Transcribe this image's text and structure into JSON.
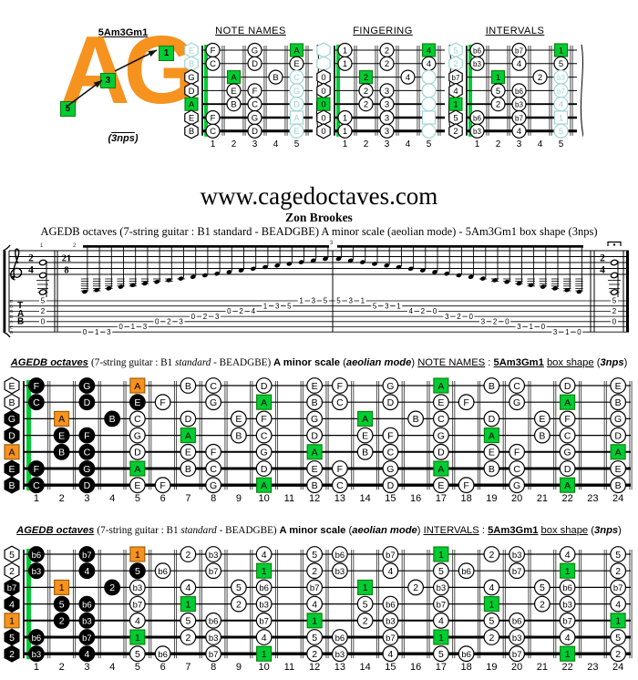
{
  "colors": {
    "orange": "#f6921e",
    "orange_dark": "#9a5a00",
    "green": "#00cc33",
    "green_dark": "#067d06",
    "teal": "#9dd4d4",
    "black": "#000000"
  },
  "logo": {
    "shape_label": "5Am3Gm1",
    "letters": "AG",
    "nps_label": "3nps",
    "box_labels": [
      "1",
      "3",
      "5"
    ]
  },
  "site": {
    "url": "www.cagedoctaves.com",
    "author": "Zon Brookes",
    "subtitle": "AGEDB octaves (7-string guitar : B1 standard - BEADGBE) A minor scale (aeolian mode) - 5Am3Gm1 box shape (3nps)"
  },
  "mini_fret_numbers": [
    "1",
    "2",
    "3",
    "4",
    "5"
  ],
  "minis": [
    {
      "title": "NOTE NAMES",
      "strings": [
        [
          [
            0,
            "E",
            "t"
          ],
          [
            1,
            "F",
            "w"
          ],
          [
            3,
            "G",
            "w"
          ],
          [
            5,
            "A",
            "g"
          ]
        ],
        [
          [
            0,
            "B",
            "t"
          ],
          [
            1,
            "C",
            "w"
          ],
          [
            3,
            "D",
            "w"
          ],
          [
            5,
            "E",
            "w"
          ]
        ],
        [
          [
            0,
            "G",
            "w"
          ],
          [
            2,
            "A",
            "g"
          ],
          [
            4,
            "B",
            "w"
          ],
          [
            5,
            "C",
            "t"
          ]
        ],
        [
          [
            0,
            "D",
            "w"
          ],
          [
            2,
            "E",
            "w"
          ],
          [
            3,
            "F",
            "w"
          ],
          [
            5,
            "G",
            "t"
          ]
        ],
        [
          [
            0,
            "A",
            "g"
          ],
          [
            2,
            "B",
            "w"
          ],
          [
            3,
            "C",
            "w"
          ],
          [
            5,
            "D",
            "t"
          ]
        ],
        [
          [
            0,
            "E",
            "w"
          ],
          [
            1,
            "F",
            "w"
          ],
          [
            3,
            "G",
            "w"
          ],
          [
            5,
            "A",
            "ts"
          ]
        ],
        [
          [
            0,
            "B",
            "w"
          ],
          [
            1,
            "C",
            "w"
          ],
          [
            3,
            "D",
            "w"
          ],
          [
            5,
            "E",
            "t"
          ]
        ]
      ]
    },
    {
      "title": "FINGERING",
      "strings": [
        [
          [
            0,
            "",
            "t"
          ],
          [
            1,
            "1",
            "w"
          ],
          [
            3,
            "2",
            "w"
          ],
          [
            5,
            "4",
            "g"
          ]
        ],
        [
          [
            0,
            "",
            "t"
          ],
          [
            1,
            "1",
            "w"
          ],
          [
            3,
            "2",
            "w"
          ],
          [
            5,
            "4",
            "w"
          ]
        ],
        [
          [
            0,
            "0",
            "w"
          ],
          [
            2,
            "2",
            "g"
          ],
          [
            4,
            "4",
            "w"
          ],
          [
            5,
            "",
            "t"
          ]
        ],
        [
          [
            0,
            "0",
            "w"
          ],
          [
            2,
            "2",
            "w"
          ],
          [
            3,
            "3",
            "w"
          ],
          [
            5,
            "",
            "t"
          ]
        ],
        [
          [
            0,
            "0",
            "g"
          ],
          [
            2,
            "2",
            "w"
          ],
          [
            3,
            "3",
            "w"
          ],
          [
            5,
            "",
            "t"
          ]
        ],
        [
          [
            0,
            "0",
            "w"
          ],
          [
            1,
            "1",
            "w"
          ],
          [
            3,
            "3",
            "w"
          ],
          [
            5,
            "",
            "ts"
          ]
        ],
        [
          [
            0,
            "0",
            "w"
          ],
          [
            1,
            "1",
            "w"
          ],
          [
            3,
            "3",
            "w"
          ],
          [
            5,
            "",
            "t"
          ]
        ]
      ]
    },
    {
      "title": "INTERVALS",
      "strings": [
        [
          [
            0,
            "5",
            "t"
          ],
          [
            1,
            "b6",
            "w"
          ],
          [
            3,
            "b7",
            "w"
          ],
          [
            5,
            "1",
            "g"
          ]
        ],
        [
          [
            0,
            "2",
            "t"
          ],
          [
            1,
            "b3",
            "w"
          ],
          [
            3,
            "4",
            "w"
          ],
          [
            5,
            "5",
            "w"
          ]
        ],
        [
          [
            0,
            "b7",
            "w"
          ],
          [
            2,
            "1",
            "g"
          ],
          [
            4,
            "2",
            "w"
          ],
          [
            5,
            "b3",
            "t"
          ]
        ],
        [
          [
            0,
            "4",
            "w"
          ],
          [
            2,
            "5",
            "w"
          ],
          [
            3,
            "b6",
            "w"
          ],
          [
            5,
            "b7",
            "t"
          ]
        ],
        [
          [
            0,
            "1",
            "g"
          ],
          [
            2,
            "2",
            "w"
          ],
          [
            3,
            "b3",
            "w"
          ],
          [
            5,
            "4",
            "t"
          ]
        ],
        [
          [
            0,
            "5",
            "w"
          ],
          [
            1,
            "b6",
            "w"
          ],
          [
            3,
            "b7",
            "w"
          ],
          [
            5,
            "1",
            "ts"
          ]
        ],
        [
          [
            0,
            "2",
            "w"
          ],
          [
            1,
            "b3",
            "w"
          ],
          [
            3,
            "4",
            "w"
          ],
          [
            5,
            "5",
            "t"
          ]
        ]
      ]
    }
  ],
  "headers": {
    "note_names": [
      {
        "t": "AGEDB octaves",
        "c": "b i u"
      },
      {
        "t": "  ",
        "c": ""
      },
      {
        "t": "(7-string guitar : B1 ",
        "c": "sf"
      },
      {
        "t": "standard",
        "c": "sf i"
      },
      {
        "t": " - BEADGBE) ",
        "c": "sf"
      },
      {
        "t": "A minor scale",
        "c": "b"
      },
      {
        "t": " (",
        "c": ""
      },
      {
        "t": "aeolian mode",
        "c": "b i"
      },
      {
        "t": ") ",
        "c": ""
      },
      {
        "t": "NOTE NAMES",
        "c": "u"
      },
      {
        "t": " : ",
        "c": ""
      },
      {
        "t": "5Am3Gm1",
        "c": "b u"
      },
      {
        "t": " ",
        "c": ""
      },
      {
        "t": "box shape",
        "c": "u"
      },
      {
        "t": " (",
        "c": ""
      },
      {
        "t": "3nps",
        "c": "b i"
      },
      {
        "t": ")",
        "c": ""
      }
    ],
    "intervals": [
      {
        "t": "AGEDB octaves",
        "c": "b i u"
      },
      {
        "t": "  ",
        "c": ""
      },
      {
        "t": "(7-string guitar : B1 ",
        "c": "sf"
      },
      {
        "t": "standard",
        "c": "sf i"
      },
      {
        "t": " - BEADGBE) ",
        "c": "sf"
      },
      {
        "t": "A minor scale",
        "c": "b"
      },
      {
        "t": " (",
        "c": ""
      },
      {
        "t": "aeolian mode",
        "c": "b i"
      },
      {
        "t": ") ",
        "c": ""
      },
      {
        "t": "INTERVALS",
        "c": "u"
      },
      {
        "t": " : ",
        "c": ""
      },
      {
        "t": "5Am3Gm1",
        "c": "b u"
      },
      {
        "t": " ",
        "c": ""
      },
      {
        "t": "box shape",
        "c": "u"
      },
      {
        "t": " (",
        "c": ""
      },
      {
        "t": "3nps",
        "c": "b i"
      },
      {
        "t": ")",
        "c": ""
      }
    ]
  },
  "fretboard": {
    "fret_numbers": [
      "1",
      "2",
      "3",
      "4",
      "5",
      "6",
      "7",
      "8",
      "9",
      "10",
      "11",
      "12",
      "13",
      "14",
      "15",
      "16",
      "17",
      "18",
      "19",
      "20",
      "21",
      "22",
      "23",
      "24"
    ],
    "interval_map": {
      "A": "1",
      "B": "2",
      "C": "b3",
      "D": "4",
      "E": "5",
      "F": "b6",
      "G": "b7"
    },
    "strings": [
      [
        [
          0,
          "E",
          "w"
        ],
        [
          1,
          "F",
          "k"
        ],
        [
          3,
          "G",
          "k"
        ],
        [
          5,
          "A",
          "o"
        ],
        [
          7,
          "B",
          "w"
        ],
        [
          8,
          "C",
          "w"
        ],
        [
          10,
          "D",
          "w"
        ],
        [
          12,
          "E",
          "w"
        ],
        [
          13,
          "F",
          "w"
        ],
        [
          15,
          "G",
          "w"
        ],
        [
          17,
          "A",
          "g"
        ],
        [
          19,
          "B",
          "w"
        ],
        [
          20,
          "C",
          "w"
        ],
        [
          22,
          "D",
          "w"
        ],
        [
          24,
          "E",
          "w"
        ]
      ],
      [
        [
          0,
          "B",
          "w"
        ],
        [
          1,
          "C",
          "k"
        ],
        [
          3,
          "D",
          "k"
        ],
        [
          5,
          "E",
          "k"
        ],
        [
          6,
          "F",
          "w"
        ],
        [
          8,
          "G",
          "w"
        ],
        [
          10,
          "A",
          "g"
        ],
        [
          12,
          "B",
          "w"
        ],
        [
          13,
          "C",
          "w"
        ],
        [
          15,
          "D",
          "w"
        ],
        [
          17,
          "E",
          "w"
        ],
        [
          18,
          "F",
          "w"
        ],
        [
          20,
          "G",
          "w"
        ],
        [
          22,
          "A",
          "g"
        ],
        [
          24,
          "B",
          "w"
        ]
      ],
      [
        [
          0,
          "G",
          "k"
        ],
        [
          2,
          "A",
          "o"
        ],
        [
          4,
          "B",
          "k"
        ],
        [
          5,
          "C",
          "w"
        ],
        [
          7,
          "D",
          "w"
        ],
        [
          9,
          "E",
          "w"
        ],
        [
          10,
          "F",
          "w"
        ],
        [
          12,
          "G",
          "w"
        ],
        [
          14,
          "A",
          "g"
        ],
        [
          16,
          "B",
          "w"
        ],
        [
          17,
          "C",
          "w"
        ],
        [
          19,
          "D",
          "w"
        ],
        [
          21,
          "E",
          "w"
        ],
        [
          22,
          "F",
          "w"
        ],
        [
          24,
          "G",
          "w"
        ]
      ],
      [
        [
          0,
          "D",
          "k"
        ],
        [
          2,
          "E",
          "k"
        ],
        [
          3,
          "F",
          "k"
        ],
        [
          5,
          "G",
          "w"
        ],
        [
          7,
          "A",
          "g"
        ],
        [
          9,
          "B",
          "w"
        ],
        [
          10,
          "C",
          "w"
        ],
        [
          12,
          "D",
          "w"
        ],
        [
          14,
          "E",
          "w"
        ],
        [
          15,
          "F",
          "w"
        ],
        [
          17,
          "G",
          "w"
        ],
        [
          19,
          "A",
          "g"
        ],
        [
          21,
          "B",
          "w"
        ],
        [
          22,
          "C",
          "w"
        ],
        [
          24,
          "D",
          "w"
        ]
      ],
      [
        [
          0,
          "A",
          "o"
        ],
        [
          2,
          "B",
          "k"
        ],
        [
          3,
          "C",
          "k"
        ],
        [
          5,
          "D",
          "w"
        ],
        [
          7,
          "E",
          "w"
        ],
        [
          8,
          "F",
          "w"
        ],
        [
          10,
          "G",
          "w"
        ],
        [
          12,
          "A",
          "g"
        ],
        [
          14,
          "B",
          "w"
        ],
        [
          15,
          "C",
          "w"
        ],
        [
          17,
          "D",
          "w"
        ],
        [
          19,
          "E",
          "w"
        ],
        [
          20,
          "F",
          "w"
        ],
        [
          22,
          "G",
          "w"
        ],
        [
          24,
          "A",
          "g"
        ]
      ],
      [
        [
          0,
          "E",
          "k"
        ],
        [
          1,
          "F",
          "k"
        ],
        [
          3,
          "G",
          "k"
        ],
        [
          5,
          "A",
          "g"
        ],
        [
          7,
          "B",
          "w"
        ],
        [
          8,
          "C",
          "w"
        ],
        [
          10,
          "D",
          "w"
        ],
        [
          12,
          "E",
          "w"
        ],
        [
          13,
          "F",
          "w"
        ],
        [
          15,
          "G",
          "w"
        ],
        [
          17,
          "A",
          "g"
        ],
        [
          19,
          "B",
          "w"
        ],
        [
          20,
          "C",
          "w"
        ],
        [
          22,
          "D",
          "w"
        ],
        [
          24,
          "E",
          "w"
        ]
      ],
      [
        [
          0,
          "B",
          "k"
        ],
        [
          1,
          "C",
          "k"
        ],
        [
          3,
          "D",
          "k"
        ],
        [
          5,
          "E",
          "w"
        ],
        [
          6,
          "F",
          "w"
        ],
        [
          8,
          "G",
          "w"
        ],
        [
          10,
          "A",
          "g"
        ],
        [
          12,
          "B",
          "w"
        ],
        [
          13,
          "C",
          "w"
        ],
        [
          15,
          "D",
          "w"
        ],
        [
          17,
          "E",
          "w"
        ],
        [
          18,
          "F",
          "w"
        ],
        [
          20,
          "G",
          "w"
        ],
        [
          22,
          "A",
          "g"
        ],
        [
          24,
          "B",
          "w"
        ]
      ]
    ]
  },
  "notation": {
    "time_sig_start": [
      "2",
      "4"
    ],
    "time_sig_mid": [
      "21",
      "8"
    ],
    "time_sig_end": [
      "2",
      "4"
    ],
    "measure_numbers": [
      "1",
      "2",
      "3"
    ],
    "tab_letters": [
      "T",
      "A",
      "B"
    ],
    "string_names_vertical": [
      "E",
      "B",
      "G",
      "D",
      "A",
      "E",
      "B"
    ],
    "chord_tab": [
      [
        1,
        "5"
      ],
      [
        3,
        "2"
      ],
      [
        5,
        "0"
      ]
    ],
    "run": [
      [
        7,
        0
      ],
      [
        7,
        1
      ],
      [
        7,
        3
      ],
      [
        6,
        0
      ],
      [
        6,
        1
      ],
      [
        6,
        3
      ],
      [
        5,
        0
      ],
      [
        5,
        2
      ],
      [
        5,
        3
      ],
      [
        4,
        0
      ],
      [
        4,
        2
      ],
      [
        4,
        3
      ],
      [
        3,
        0
      ],
      [
        3,
        2
      ],
      [
        3,
        4
      ],
      [
        2,
        1
      ],
      [
        2,
        3
      ],
      [
        2,
        5
      ],
      [
        1,
        1
      ],
      [
        1,
        3
      ],
      [
        1,
        5
      ],
      [
        1,
        5
      ],
      [
        1,
        3
      ],
      [
        1,
        1
      ],
      [
        2,
        5
      ],
      [
        2,
        3
      ],
      [
        2,
        1
      ],
      [
        3,
        4
      ],
      [
        3,
        2
      ],
      [
        3,
        0
      ],
      [
        4,
        3
      ],
      [
        4,
        2
      ],
      [
        4,
        0
      ],
      [
        5,
        3
      ],
      [
        5,
        2
      ],
      [
        5,
        0
      ],
      [
        6,
        3
      ],
      [
        6,
        1
      ],
      [
        6,
        0
      ],
      [
        7,
        3
      ],
      [
        7,
        1
      ],
      [
        7,
        0
      ]
    ]
  }
}
